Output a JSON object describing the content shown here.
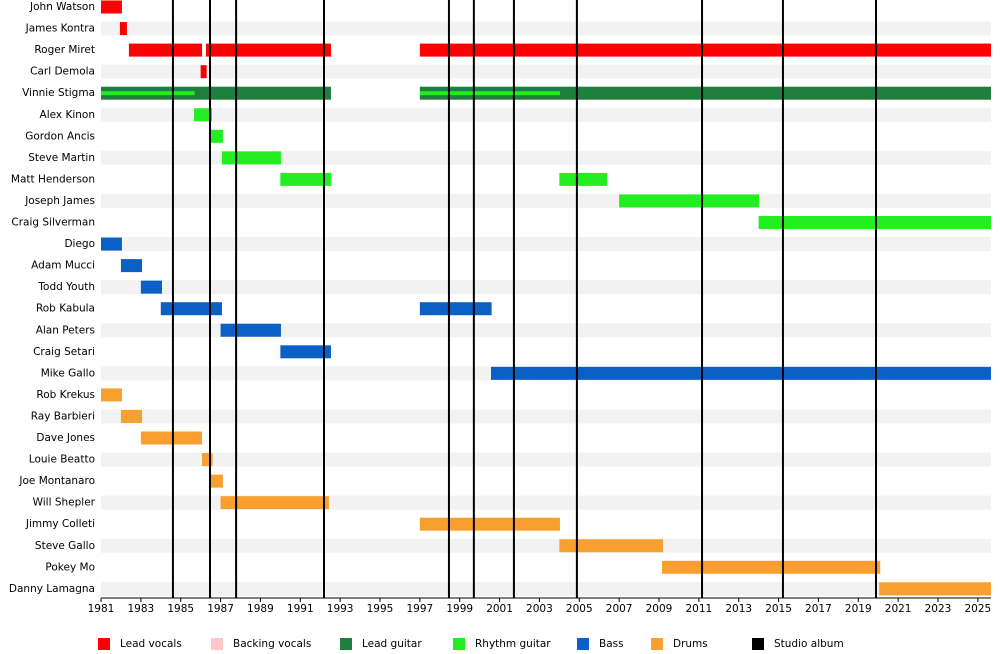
{
  "chart_data": {
    "type": "timeline",
    "categories": [
      "John Watson",
      "James Kontra",
      "Roger Miret",
      "Carl Demola",
      "Vinnie Stigma",
      "Alex Kinon",
      "Gordon Ancis",
      "Steve Martin",
      "Matt Henderson",
      "Joseph James",
      "Craig Silverman",
      "Diego",
      "Adam Mucci",
      "Todd Youth",
      "Rob Kabula",
      "Alan Peters",
      "Craig Setari",
      "Mike Gallo",
      "Rob Krekus",
      "Ray Barbieri",
      "Dave Jones",
      "Louie Beatto",
      "Joe Montanaro",
      "Will Shepler",
      "Jimmy Colleti",
      "Steve Gallo",
      "Pokey Mo",
      "Danny Lamagna"
    ],
    "roles": [
      {
        "name": "Lead vocals",
        "color": "#ff0000"
      },
      {
        "name": "Backing vocals",
        "color": "#ffc8c8"
      },
      {
        "name": "Lead guitar",
        "color": "#1e7f3e"
      },
      {
        "name": "Rhythm guitar",
        "color": "#22ee22"
      },
      {
        "name": "Bass",
        "color": "#0b60c6"
      },
      {
        "name": "Drums",
        "color": "#f7a030"
      }
    ],
    "bars": [
      {
        "member": "John Watson",
        "role": "Lead vocals",
        "start": 1981,
        "end": 1982.05
      },
      {
        "member": "James Kontra",
        "role": "Lead vocals",
        "start": 1981.95,
        "end": 1982.3
      },
      {
        "member": "Roger Miret",
        "role": "Lead vocals",
        "start": 1982.4,
        "end": 1986.07
      },
      {
        "member": "Roger Miret",
        "role": "Lead vocals",
        "start": 1986.27,
        "end": 1992.54
      },
      {
        "member": "Roger Miret",
        "role": "Lead vocals",
        "start": 1997,
        "end": 2025.66
      },
      {
        "member": "Carl Demola",
        "role": "Lead vocals",
        "start": 1986,
        "end": 1986.3
      },
      {
        "member": "Vinnie Stigma",
        "role": "Lead guitar",
        "start": 1981,
        "end": 1992.54
      },
      {
        "member": "Vinnie Stigma",
        "role": "Lead guitar",
        "start": 1997,
        "end": 2025.66
      },
      {
        "member": "Vinnie Stigma",
        "role": "Rhythm guitar",
        "start": 1981,
        "end": 1985.7
      },
      {
        "member": "Vinnie Stigma",
        "role": "Rhythm guitar",
        "start": 1997,
        "end": 2004.03
      },
      {
        "member": "Alex Kinon",
        "role": "Rhythm guitar",
        "start": 1985.67,
        "end": 1986.57
      },
      {
        "member": "Gordon Ancis",
        "role": "Rhythm guitar",
        "start": 1986.52,
        "end": 1987.12
      },
      {
        "member": "Steve Martin",
        "role": "Rhythm guitar",
        "start": 1987.07,
        "end": 1990.03
      },
      {
        "member": "Matt Henderson",
        "role": "Rhythm guitar",
        "start": 1990,
        "end": 1992.54
      },
      {
        "member": "Matt Henderson",
        "role": "Rhythm guitar",
        "start": 2004,
        "end": 2006.4
      },
      {
        "member": "Joseph James",
        "role": "Rhythm guitar",
        "start": 2007,
        "end": 2014.02
      },
      {
        "member": "Craig Silverman",
        "role": "Rhythm guitar",
        "start": 2014,
        "end": 2025.66
      },
      {
        "member": "Diego",
        "role": "Bass",
        "start": 1981,
        "end": 1982.05
      },
      {
        "member": "Adam Mucci",
        "role": "Bass",
        "start": 1982,
        "end": 1983.06
      },
      {
        "member": "Todd Youth",
        "role": "Bass",
        "start": 1983,
        "end": 1984.06
      },
      {
        "member": "Rob Kabula",
        "role": "Bass",
        "start": 1984,
        "end": 1987.07
      },
      {
        "member": "Rob Kabula",
        "role": "Bass",
        "start": 1997,
        "end": 2000.6
      },
      {
        "member": "Alan Peters",
        "role": "Bass",
        "start": 1987,
        "end": 1990.03
      },
      {
        "member": "Craig Setari",
        "role": "Bass",
        "start": 1990,
        "end": 1992.54
      },
      {
        "member": "Mike Gallo",
        "role": "Bass",
        "start": 2000.57,
        "end": 2025.66
      },
      {
        "member": "Rob Krekus",
        "role": "Drums",
        "start": 1981,
        "end": 1982.05
      },
      {
        "member": "Ray Barbieri",
        "role": "Drums",
        "start": 1982,
        "end": 1983.06
      },
      {
        "member": "Dave Jones",
        "role": "Drums",
        "start": 1983,
        "end": 1986.07
      },
      {
        "member": "Louie Beatto",
        "role": "Drums",
        "start": 1986.07,
        "end": 1986.6
      },
      {
        "member": "Joe Montanaro",
        "role": "Drums",
        "start": 1986.52,
        "end": 1987.12
      },
      {
        "member": "Will Shepler",
        "role": "Drums",
        "start": 1987,
        "end": 1992.44
      },
      {
        "member": "Jimmy Colleti",
        "role": "Drums",
        "start": 1997,
        "end": 2004.03
      },
      {
        "member": "Steve Gallo",
        "role": "Drums",
        "start": 2004,
        "end": 2009.2
      },
      {
        "member": "Pokey Mo",
        "role": "Drums",
        "start": 2009.15,
        "end": 2020.1
      },
      {
        "member": "Danny Lamagna",
        "role": "Drums",
        "start": 2020.05,
        "end": 2025.66
      }
    ],
    "albums": {
      "name": "Studio album",
      "color": "#000000",
      "values": [
        1984.61,
        1986.47,
        1987.78,
        1992.19,
        1998.46,
        1999.71,
        2001.72,
        2004.88,
        2011.16,
        2015.22,
        2019.89
      ]
    },
    "xlim": [
      1981,
      2025.66
    ],
    "xticks": [
      1981,
      1983,
      1985,
      1987,
      1989,
      1991,
      1993,
      1995,
      1997,
      1999,
      2001,
      2003,
      2005,
      2007,
      2009,
      2011,
      2013,
      2015,
      2017,
      2019,
      2021,
      2023,
      2025
    ]
  }
}
